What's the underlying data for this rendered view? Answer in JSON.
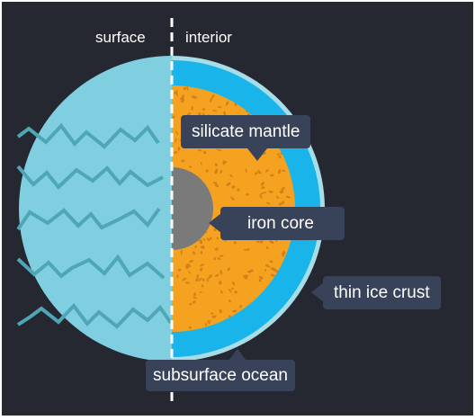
{
  "header": {
    "left_label": "surface",
    "right_label": "interior"
  },
  "labels": {
    "mantle": "silicate mantle",
    "core": "iron core",
    "crust": "thin ice crust",
    "ocean": "subsurface ocean"
  },
  "colors": {
    "background": "#252830",
    "frame": "#ffffff",
    "surface_ice": "#7fcfe1",
    "surface_cracks": "#4fa6b6",
    "ocean": "#18b4ea",
    "crust": "#a8dde8",
    "mantle": "#f4a21f",
    "mantle_speckle": "#d4801a",
    "core": "#7a7a7a",
    "callout_bg": "#384259",
    "callout_text": "#ffffff",
    "divider": "#ffffff"
  }
}
